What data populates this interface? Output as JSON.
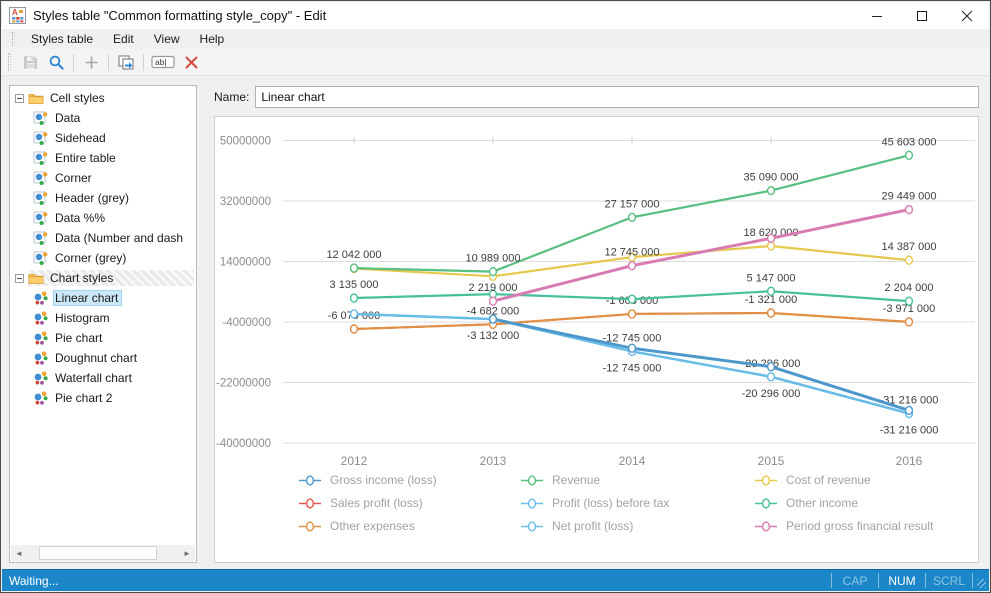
{
  "window": {
    "title": "Styles table \"Common formatting style_copy\" - Edit"
  },
  "window_controls": {
    "minimize": "–",
    "maximize": "□",
    "close": "×"
  },
  "menu": {
    "items": [
      "Styles table",
      "Edit",
      "View",
      "Help"
    ]
  },
  "toolbar": {
    "buttons": [
      {
        "name": "save",
        "icon": "save-icon",
        "enabled": false
      },
      {
        "name": "search",
        "icon": "search-icon",
        "enabled": true
      },
      {
        "name": "add",
        "icon": "plus-icon",
        "enabled": false
      },
      {
        "name": "duplicate",
        "icon": "duplicate-icon",
        "enabled": true
      },
      {
        "name": "rename",
        "icon": "rename-icon",
        "enabled": true
      },
      {
        "name": "delete",
        "icon": "delete-icon",
        "enabled": true
      }
    ]
  },
  "sidebar": {
    "groups": [
      {
        "label": "Cell styles",
        "type": "cell",
        "hatched": false,
        "items": [
          {
            "label": "Data",
            "selected": false
          },
          {
            "label": "Sidehead",
            "selected": false
          },
          {
            "label": "Entire table",
            "selected": false
          },
          {
            "label": "Corner",
            "selected": false
          },
          {
            "label": "Header (grey)",
            "selected": false
          },
          {
            "label": "Data %%",
            "selected": false
          },
          {
            "label": "Data (Number and dash",
            "selected": false
          },
          {
            "label": "Corner (grey)",
            "selected": false
          }
        ]
      },
      {
        "label": "Chart styles",
        "type": "chart",
        "hatched": true,
        "items": [
          {
            "label": "Linear chart",
            "selected": true
          },
          {
            "label": "Histogram",
            "selected": false
          },
          {
            "label": "Pie chart",
            "selected": false
          },
          {
            "label": "Doughnut chart",
            "selected": false
          },
          {
            "label": "Waterfall chart",
            "selected": false
          },
          {
            "label": "Pie chart 2",
            "selected": false
          }
        ]
      }
    ]
  },
  "name_field": {
    "label": "Name:",
    "value": "Linear chart"
  },
  "chart_data": {
    "type": "line",
    "x": [
      "2012",
      "2013",
      "2014",
      "2015",
      "2016"
    ],
    "ylim": [
      -40000000,
      50000000
    ],
    "yticks": [
      50000000,
      32000000,
      14000000,
      -4000000,
      -22000000,
      -40000000
    ],
    "ytick_labels": [
      "50000000",
      "32000000",
      "14000000",
      "-4000000",
      "-22000000",
      "-40000000"
    ],
    "grid": true,
    "legend_position": "bottom",
    "series": [
      {
        "name": "Gross income (loss)",
        "color": "#4d97cb",
        "width": 3,
        "z": 9,
        "values": [
          null,
          -3132000,
          -11800000,
          -17300000,
          -30300000
        ],
        "labels": [
          null,
          null,
          null,
          null,
          null
        ],
        "label_side": "above"
      },
      {
        "name": "Revenue",
        "color": "#57bf80",
        "width": 2.2,
        "z": 6,
        "values": [
          12042000,
          10989000,
          27157000,
          35090000,
          45603000
        ],
        "labels": [
          "12 042 000",
          "10 989 000",
          "27 157 000",
          "35 090 000",
          "45 603 000"
        ],
        "label_side": "above"
      },
      {
        "name": "Cost of revenue",
        "color": "#e6c84d",
        "width": 2.2,
        "z": 4,
        "values": [
          11900000,
          9600000,
          15300000,
          18620000,
          14387000
        ],
        "labels": [
          null,
          null,
          null,
          "18 620 000",
          "14 387 000"
        ],
        "label_side": "above"
      },
      {
        "name": "Sales profit (loss)",
        "color": "#e2574e",
        "width": 2,
        "z": 1,
        "values": [
          -6079000,
          -4682000,
          -1606000,
          -1321000,
          -3971000
        ],
        "labels": [
          null,
          null,
          null,
          null,
          null
        ],
        "label_side": "above"
      },
      {
        "name": "Profit (loss) before tax",
        "color": "#68bce8",
        "width": 2.4,
        "z": 7,
        "values": [
          -1600000,
          -3132000,
          -12745000,
          -20296000,
          -31216000
        ],
        "labels": [
          null,
          null,
          "-12 745 000",
          "-20 296 000",
          "-31 216 000"
        ],
        "label_side": "above"
      },
      {
        "name": "Other income",
        "color": "#45bf9c",
        "width": 2.2,
        "z": 3,
        "values": [
          3135000,
          4300000,
          2800000,
          5147000,
          2204000
        ],
        "labels": [
          "3 135 000",
          null,
          null,
          "5 147 000",
          "2 204 000"
        ],
        "label_side": "above"
      },
      {
        "name": "Other expenses",
        "color": "#e09145",
        "width": 2.2,
        "z": 2,
        "values": [
          -6079000,
          -4682000,
          -1606000,
          -1321000,
          -3971000
        ],
        "labels": [
          "-6 079 000",
          "-4 682 000",
          "-1 606 000",
          "-1 321 000",
          "-3 971 000"
        ],
        "label_side": "above"
      },
      {
        "name": "Net profit (loss)",
        "color": "#68bce8",
        "width": 2.4,
        "z": 8,
        "values": [
          -1600000,
          -3132000,
          -12745000,
          -20296000,
          -31216000
        ],
        "labels": [
          null,
          "-3 132 000",
          "-12 745 000",
          "-20 296 000",
          "-31 216 000"
        ],
        "label_side": "below"
      },
      {
        "name": "Period gross financial result",
        "color": "#d97bb3",
        "width": 3,
        "z": 5,
        "values": [
          null,
          2219000,
          12745000,
          20900000,
          29449000
        ],
        "labels": [
          null,
          "2 219 000",
          "12 745 000",
          null,
          "29 449 000"
        ],
        "label_side": "above"
      }
    ]
  },
  "status_bar": {
    "text": "Waiting...",
    "indicators": [
      {
        "label": "CAP",
        "active": false
      },
      {
        "label": "NUM",
        "active": true
      },
      {
        "label": "SCRL",
        "active": false
      }
    ]
  },
  "colors": {
    "accent_blue": "#1b87c9",
    "selection": "#cbe8f6",
    "grid": "#dcdcdc",
    "tick_text": "#8c8c8c",
    "label_text": "#3d3d3d"
  }
}
